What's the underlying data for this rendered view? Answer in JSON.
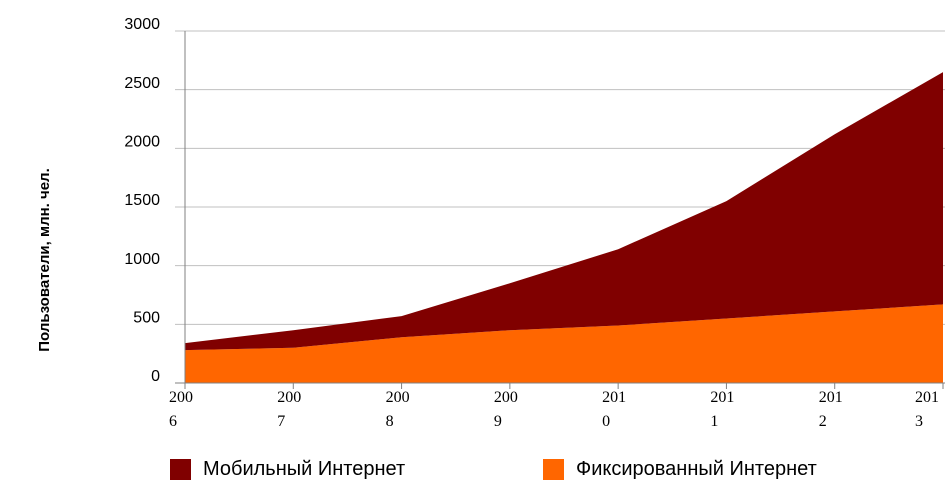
{
  "chart_data": {
    "type": "stacked_area",
    "y_label": "Пользователи, млн. чел.",
    "categories": [
      "2006",
      "2007",
      "2008",
      "2009",
      "2010",
      "2011",
      "2012",
      "2013"
    ],
    "series": [
      {
        "name": "Мобильный Интернет",
        "color": "#800000",
        "values": [
          60,
          150,
          180,
          400,
          650,
          1000,
          1510,
          1980
        ]
      },
      {
        "name": "Фиксированный Интернет",
        "color": "#ff6600",
        "values": [
          280,
          300,
          390,
          450,
          490,
          550,
          610,
          670
        ]
      }
    ],
    "ylim": [
      0,
      3000
    ],
    "yticks": [
      0,
      500,
      1000,
      1500,
      2000,
      2500,
      3000
    ],
    "grid": true
  }
}
